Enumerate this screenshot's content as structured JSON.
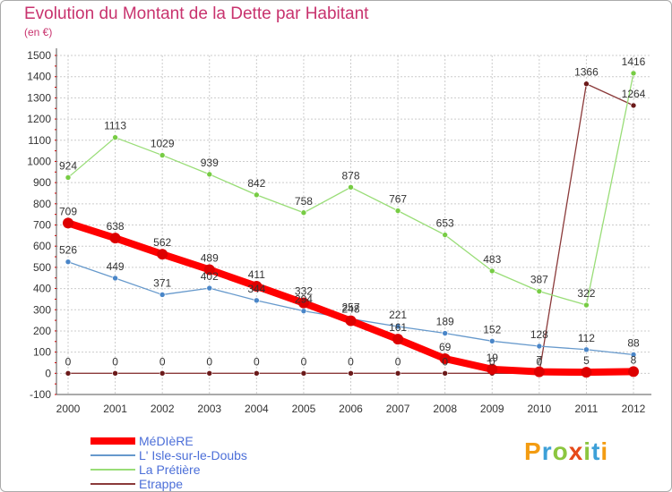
{
  "title": "Evolution du Montant de la Dette par Habitant",
  "unit": "(en €)",
  "brand": {
    "text": "Proxiti",
    "colors": [
      "#f39c12",
      "#3da0d8",
      "#8cc63f",
      "#e64a19",
      "#8cc63f",
      "#3da0d8",
      "#f39c12"
    ]
  },
  "colors": {
    "title": "#c8336e",
    "grid": "#cccccc",
    "axis": "#555555",
    "tick_marks": "#cc0000",
    "legend_text": "#4c6fd8"
  },
  "chart_data": {
    "type": "line",
    "x": [
      "2000",
      "2001",
      "2002",
      "2003",
      "2004",
      "2005",
      "2006",
      "2007",
      "2008",
      "2009",
      "2010",
      "2011",
      "2012"
    ],
    "ylim": [
      -100,
      1500
    ],
    "yticks": [
      -100,
      0,
      100,
      200,
      300,
      400,
      500,
      600,
      700,
      800,
      900,
      1000,
      1100,
      1200,
      1300,
      1400,
      1500
    ],
    "grid": true,
    "series": [
      {
        "name": "MéDIèRE",
        "color": "#ff0000",
        "marker": "#dd0000",
        "width": "thick",
        "values": [
          709,
          638,
          562,
          489,
          411,
          332,
          248,
          161,
          69,
          19,
          7,
          5,
          8
        ]
      },
      {
        "name": "L' Isle-sur-le-Doubs",
        "color": "#6699cc",
        "marker": "#4a86c8",
        "width": "thin",
        "values": [
          526,
          449,
          371,
          402,
          344,
          294,
          257,
          221,
          189,
          152,
          128,
          112,
          88
        ]
      },
      {
        "name": "La Prétière",
        "color": "#99dd77",
        "marker": "#77cc44",
        "width": "thin",
        "values": [
          924,
          1113,
          1029,
          939,
          842,
          758,
          878,
          767,
          653,
          483,
          387,
          322,
          1416
        ]
      },
      {
        "name": "Etrappe",
        "color": "#8b3a3a",
        "marker": "#6b1a1a",
        "width": "thin",
        "values": [
          0,
          0,
          0,
          0,
          0,
          0,
          0,
          0,
          0,
          0,
          0,
          1366,
          1264
        ]
      }
    ]
  }
}
